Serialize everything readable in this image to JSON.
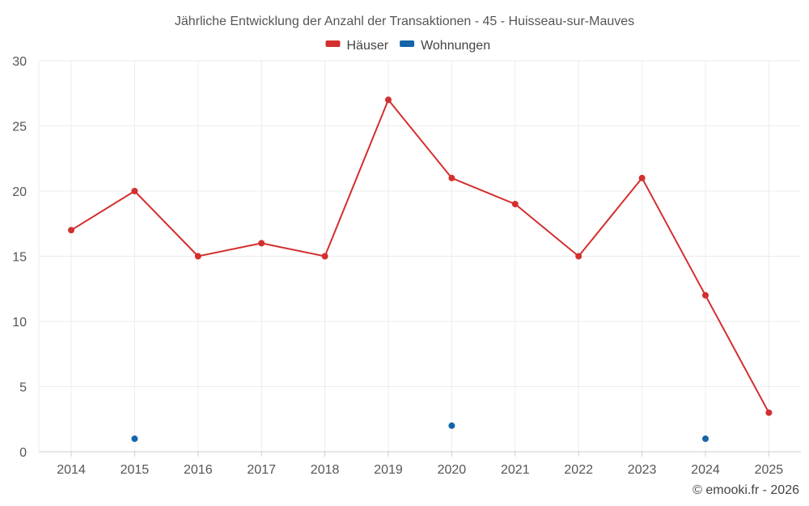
{
  "chart_data": {
    "type": "line",
    "title": "Jährliche Entwicklung der Anzahl der Transaktionen - 45 - Huisseau-sur-Mauves",
    "categories": [
      "2014",
      "2015",
      "2016",
      "2017",
      "2018",
      "2019",
      "2020",
      "2021",
      "2022",
      "2023",
      "2024",
      "2025"
    ],
    "series": [
      {
        "name": "Häuser",
        "color": "#d32f2f",
        "values": [
          17,
          20,
          15,
          16,
          15,
          27,
          21,
          19,
          15,
          21,
          12,
          3
        ]
      },
      {
        "name": "Wohnungen",
        "color": "#1565a8",
        "values": [
          null,
          1,
          null,
          null,
          null,
          null,
          2,
          null,
          null,
          null,
          1,
          null
        ]
      }
    ],
    "ylim": [
      0,
      30
    ],
    "yticks": [
      "0",
      "5",
      "10",
      "15",
      "20",
      "25",
      "30"
    ],
    "grid": true,
    "legend_position": "top-center"
  },
  "credit": "© emooki.fr - 2026"
}
